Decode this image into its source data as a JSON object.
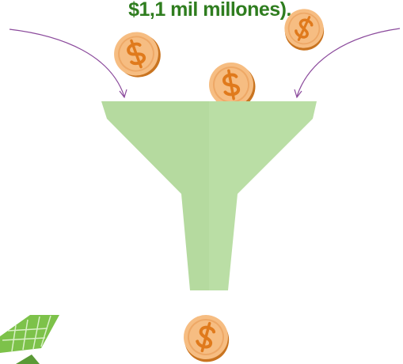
{
  "header": {
    "text": "$1,1 mil millones)."
  }
}
